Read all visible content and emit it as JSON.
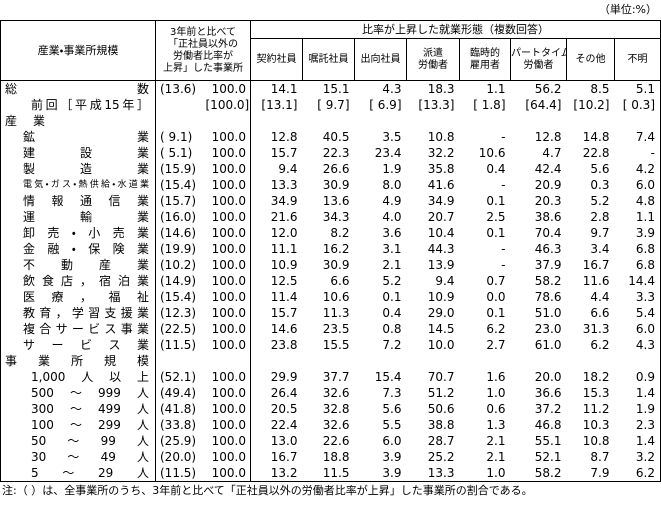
{
  "unit": "（単位:%）",
  "header": {
    "category": "産業・事業所規模",
    "ratio_lines": [
      "3年前と比べて",
      "「正社員以外の",
      "労働者比率が",
      "上昇」した事業所"
    ],
    "forms_title": "比率が上昇した就業形態（複数回答）",
    "forms": [
      [
        "契約社員"
      ],
      [
        "嘱託社員"
      ],
      [
        "出向社員"
      ],
      [
        "派遣",
        "労働者"
      ],
      [
        "臨時的",
        "雇用者"
      ],
      [
        "パートタイム",
        "労働者"
      ],
      [
        "その他"
      ],
      [
        "不明"
      ]
    ]
  },
  "total": {
    "label": "総数",
    "share": "(13.6)",
    "total": "100.0",
    "values": [
      "14.1",
      "15.1",
      "4.3",
      "18.3",
      "1.1",
      "56.2",
      "8.5",
      "5.1"
    ]
  },
  "previous": {
    "label": "前回［平成15年］",
    "total": "[100.0]",
    "values": [
      "[13.1]",
      "[ 9.7]",
      "[ 6.9]",
      "[13.3]",
      "[ 1.8]",
      "[64.4]",
      "[10.2]",
      "[ 0.3]"
    ]
  },
  "sections": [
    {
      "title": "産業",
      "rows": [
        {
          "label": "鉱業",
          "share": "( 9.1)",
          "total": "100.0",
          "values": [
            "12.8",
            "40.5",
            "3.5",
            "10.8",
            "-",
            "12.8",
            "14.8",
            "7.4"
          ]
        },
        {
          "label": "建設業",
          "share": "( 5.1)",
          "total": "100.0",
          "values": [
            "15.7",
            "22.3",
            "23.4",
            "32.2",
            "10.6",
            "4.7",
            "22.8",
            "-"
          ]
        },
        {
          "label": "製造業",
          "share": "(15.9)",
          "total": "100.0",
          "values": [
            "9.4",
            "26.6",
            "1.9",
            "35.8",
            "0.4",
            "42.4",
            "5.6",
            "4.2"
          ]
        },
        {
          "label": "電気・ガス・熱供給・水道業",
          "share": "(15.4)",
          "total": "100.0",
          "values": [
            "13.3",
            "30.9",
            "8.0",
            "41.6",
            "-",
            "20.9",
            "0.3",
            "6.0"
          ]
        },
        {
          "label": "情報通信業",
          "share": "(15.7)",
          "total": "100.0",
          "values": [
            "34.9",
            "13.6",
            "4.9",
            "34.9",
            "0.1",
            "20.3",
            "5.2",
            "4.8"
          ]
        },
        {
          "label": "運輸業",
          "share": "(16.0)",
          "total": "100.0",
          "values": [
            "21.6",
            "34.3",
            "4.0",
            "20.7",
            "2.5",
            "38.6",
            "2.8",
            "1.1"
          ]
        },
        {
          "label": "卸売・小売業",
          "share": "(14.6)",
          "total": "100.0",
          "values": [
            "12.0",
            "8.2",
            "3.6",
            "10.4",
            "0.1",
            "70.4",
            "9.7",
            "3.9"
          ]
        },
        {
          "label": "金融・保険業",
          "share": "(19.9)",
          "total": "100.0",
          "values": [
            "11.1",
            "16.2",
            "3.1",
            "44.3",
            "-",
            "46.3",
            "3.4",
            "6.8"
          ]
        },
        {
          "label": "不動産業",
          "share": "(10.2)",
          "total": "100.0",
          "values": [
            "10.9",
            "30.9",
            "2.1",
            "13.9",
            "-",
            "37.9",
            "16.7",
            "6.8"
          ]
        },
        {
          "label": "飲食店，宿泊業",
          "share": "(14.9)",
          "total": "100.0",
          "values": [
            "12.5",
            "6.6",
            "5.2",
            "9.4",
            "0.7",
            "58.2",
            "11.6",
            "14.4"
          ]
        },
        {
          "label": "医療，福祉",
          "share": "(15.4)",
          "total": "100.0",
          "values": [
            "11.4",
            "10.6",
            "0.1",
            "10.9",
            "0.0",
            "78.6",
            "4.4",
            "3.3"
          ]
        },
        {
          "label": "教育，学習支援業",
          "share": "(12.3)",
          "total": "100.0",
          "values": [
            "15.7",
            "11.3",
            "0.4",
            "29.0",
            "0.1",
            "51.0",
            "6.6",
            "5.4"
          ]
        },
        {
          "label": "複合サービス事業",
          "share": "(22.5)",
          "total": "100.0",
          "values": [
            "14.6",
            "23.5",
            "0.8",
            "14.5",
            "6.2",
            "23.0",
            "31.3",
            "6.0"
          ]
        },
        {
          "label": "サービス業",
          "share": "(11.5)",
          "total": "100.0",
          "values": [
            "23.8",
            "15.5",
            "7.2",
            "10.0",
            "2.7",
            "61.0",
            "6.2",
            "4.3"
          ]
        }
      ]
    },
    {
      "title": "事業所規模",
      "rows": [
        {
          "label": "1,000人以上",
          "share": "(52.1)",
          "total": "100.0",
          "values": [
            "29.9",
            "37.7",
            "15.4",
            "70.7",
            "1.6",
            "20.0",
            "18.2",
            "0.9"
          ]
        },
        {
          "label": "500～999人",
          "share": "(49.4)",
          "total": "100.0",
          "values": [
            "26.4",
            "32.6",
            "7.3",
            "51.2",
            "1.0",
            "36.6",
            "15.3",
            "1.4"
          ]
        },
        {
          "label": "300～499人",
          "share": "(41.8)",
          "total": "100.0",
          "values": [
            "20.5",
            "32.8",
            "5.6",
            "50.6",
            "0.6",
            "37.2",
            "11.2",
            "1.9"
          ]
        },
        {
          "label": "100～299人",
          "share": "(33.8)",
          "total": "100.0",
          "values": [
            "22.4",
            "32.6",
            "5.5",
            "38.8",
            "1.3",
            "46.8",
            "10.3",
            "2.3"
          ]
        },
        {
          "label": "50～99人",
          "share": "(25.9)",
          "total": "100.0",
          "values": [
            "13.0",
            "22.6",
            "6.0",
            "28.7",
            "2.1",
            "55.1",
            "10.8",
            "1.4"
          ]
        },
        {
          "label": "30～49人",
          "share": "(20.0)",
          "total": "100.0",
          "values": [
            "16.7",
            "18.8",
            "3.9",
            "25.2",
            "2.1",
            "52.1",
            "8.7",
            "3.2"
          ]
        },
        {
          "label": "5～29人",
          "share": "(11.5)",
          "total": "100.0",
          "values": [
            "13.2",
            "11.5",
            "3.9",
            "13.3",
            "1.0",
            "58.2",
            "7.9",
            "6.2"
          ]
        }
      ]
    }
  ],
  "note": "注:（ ）は、全事業所のうち、3年前と比べて「正社員以外の労働者比率が上昇」した事業所の割合である。"
}
